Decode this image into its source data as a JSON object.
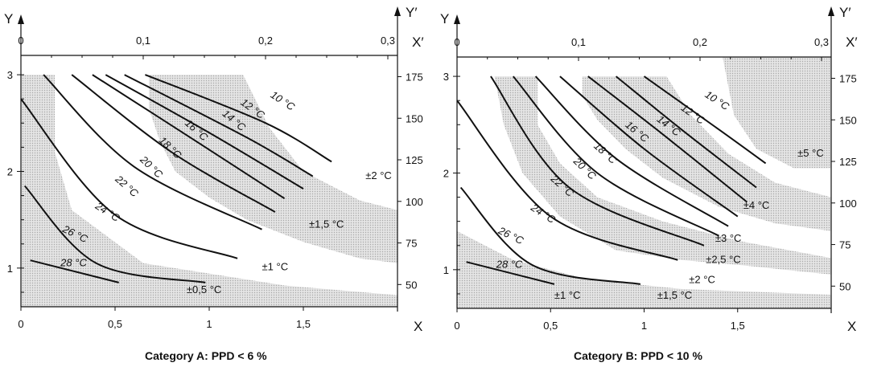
{
  "chart_data": [
    {
      "type": "line",
      "caption": "Category A: PPD < 6 %",
      "xlabel": "X",
      "ylabel": "Y",
      "x2label": "X′",
      "y2label": "Y′",
      "xlim": [
        0,
        2
      ],
      "ylim": [
        0.6,
        3.2
      ],
      "x_ticks": [
        "0",
        "0,5",
        "1",
        "1,5"
      ],
      "y_ticks": [
        "1",
        "2",
        "3"
      ],
      "x2_ticks": [
        "0",
        "0,1",
        "0,2",
        "0,3"
      ],
      "y2_ticks": [
        "50",
        "75",
        "100",
        "125",
        "150",
        "175"
      ],
      "shaded_bands": [
        {
          "points": [
            [
              0,
              3.0
            ],
            [
              0.18,
              3.0
            ],
            [
              0.18,
              2.2
            ],
            [
              0.27,
              1.6
            ],
            [
              0.65,
              1.05
            ],
            [
              1.4,
              0.82
            ],
            [
              2.0,
              0.72
            ],
            [
              2.0,
              0.6
            ],
            [
              0,
              0.6
            ]
          ]
        },
        {
          "points": [
            [
              0.68,
              3.0
            ],
            [
              1.18,
              3.0
            ],
            [
              1.32,
              2.45
            ],
            [
              1.5,
              2.0
            ],
            [
              1.8,
              1.7
            ],
            [
              2.0,
              1.6
            ],
            [
              2.0,
              1.05
            ],
            [
              1.8,
              1.1
            ],
            [
              1.5,
              1.27
            ],
            [
              1.2,
              1.5
            ],
            [
              1.0,
              1.73
            ],
            [
              0.82,
              2.0
            ],
            [
              0.74,
              2.3
            ],
            [
              0.68,
              2.65
            ]
          ]
        }
      ],
      "series": [
        {
          "name": "10 °C",
          "x": [
            0.66,
            1.3,
            1.65
          ],
          "y": [
            3.0,
            2.5,
            2.1
          ]
        },
        {
          "name": "12 °C",
          "x": [
            0.55,
            1.2,
            1.55
          ],
          "y": [
            3.0,
            2.35,
            1.95
          ]
        },
        {
          "name": "14 °C",
          "x": [
            0.45,
            1.0,
            1.5
          ],
          "y": [
            3.0,
            2.4,
            1.82
          ]
        },
        {
          "name": "16 °C",
          "x": [
            0.38,
            0.9,
            1.4
          ],
          "y": [
            3.0,
            2.35,
            1.72
          ]
        },
        {
          "name": "18 °C",
          "x": [
            0.27,
            0.8,
            1.35
          ],
          "y": [
            3.0,
            2.2,
            1.58
          ]
        },
        {
          "name": "22 °C",
          "x": [
            0.12,
            0.6,
            1.28
          ],
          "y": [
            3.0,
            2.05,
            1.4
          ]
        },
        {
          "name": "24 °C",
          "x": [
            0.0,
            0.5,
            1.15
          ],
          "y": [
            2.75,
            1.55,
            1.1
          ]
        },
        {
          "name": "26 °C",
          "x": [
            0.02,
            0.4,
            0.98
          ],
          "y": [
            1.85,
            1.05,
            0.85
          ]
        },
        {
          "name": "28 °C",
          "x": [
            0.05,
            0.52
          ],
          "y": [
            1.08,
            0.85
          ]
        }
      ],
      "curve_labels": [
        {
          "text": "10 °C",
          "x": 1.38,
          "y": 2.7,
          "rot": 33
        },
        {
          "text": "12 °C",
          "x": 1.22,
          "y": 2.62,
          "rot": 36
        },
        {
          "text": "14 °C",
          "x": 1.12,
          "y": 2.5,
          "rot": 40
        },
        {
          "text": "16 °C",
          "x": 0.92,
          "y": 2.4,
          "rot": 42
        },
        {
          "text": "18 °C",
          "x": 0.78,
          "y": 2.22,
          "rot": 44
        },
        {
          "text": "20 °C",
          "x": 0.68,
          "y": 2.02,
          "rot": 44
        },
        {
          "text": "22 °C",
          "x": 0.55,
          "y": 1.82,
          "rot": 42
        },
        {
          "text": "24 °C",
          "x": 0.45,
          "y": 1.55,
          "rot": 33
        },
        {
          "text": "26 °C",
          "x": 0.28,
          "y": 1.32,
          "rot": 26
        },
        {
          "text": "28 °C",
          "x": 0.28,
          "y": 1.02,
          "rot": 0
        }
      ],
      "tolerance_labels": [
        {
          "text": "±2 °C",
          "x": 1.83,
          "y": 1.92
        },
        {
          "text": "±1,5 °C",
          "x": 1.53,
          "y": 1.42
        },
        {
          "text": "±1 °C",
          "x": 1.28,
          "y": 0.98
        },
        {
          "text": "±0,5 °C",
          "x": 0.88,
          "y": 0.74
        }
      ]
    },
    {
      "type": "line",
      "caption": "Category B: PPD < 10 %",
      "xlabel": "X",
      "ylabel": "Y",
      "x2label": "X′",
      "y2label": "Y′",
      "xlim": [
        0,
        2
      ],
      "ylim": [
        0.6,
        3.2
      ],
      "x_ticks": [
        "0",
        "0,5",
        "1",
        "1,5"
      ],
      "y_ticks": [
        "1",
        "2",
        "3"
      ],
      "x2_ticks": [
        "0",
        "0,1",
        "0,2",
        "0,3"
      ],
      "y2_ticks": [
        "50",
        "75",
        "100",
        "125",
        "150",
        "175"
      ],
      "shaded_bands": [
        {
          "points": [
            [
              0,
              1.4
            ],
            [
              0.3,
              1.1
            ],
            [
              0.7,
              0.9
            ],
            [
              1.2,
              0.8
            ],
            [
              2.0,
              0.74
            ],
            [
              2.0,
              0.6
            ],
            [
              0,
              0.6
            ]
          ]
        },
        {
          "points": [
            [
              0.2,
              3.0
            ],
            [
              0.43,
              3.0
            ],
            [
              0.43,
              2.5
            ],
            [
              0.55,
              2.1
            ],
            [
              0.75,
              1.75
            ],
            [
              1.1,
              1.5
            ],
            [
              1.5,
              1.3
            ],
            [
              2.0,
              1.12
            ],
            [
              2.0,
              0.95
            ],
            [
              1.5,
              1.05
            ],
            [
              1.2,
              1.1
            ],
            [
              0.85,
              1.2
            ],
            [
              0.55,
              1.55
            ],
            [
              0.35,
              2.0
            ],
            [
              0.25,
              2.5
            ]
          ]
        },
        {
          "points": [
            [
              0.67,
              3.0
            ],
            [
              1.12,
              3.0
            ],
            [
              1.25,
              2.6
            ],
            [
              1.45,
              2.2
            ],
            [
              1.7,
              1.9
            ],
            [
              2.0,
              1.75
            ],
            [
              2.0,
              1.4
            ],
            [
              1.7,
              1.48
            ],
            [
              1.4,
              1.65
            ],
            [
              1.1,
              1.95
            ],
            [
              0.9,
              2.25
            ],
            [
              0.75,
              2.55
            ],
            [
              0.67,
              2.8
            ]
          ]
        },
        {
          "points": [
            [
              1.42,
              3.2
            ],
            [
              2.0,
              3.2
            ],
            [
              2.0,
              2.05
            ],
            [
              1.8,
              2.05
            ],
            [
              1.6,
              2.25
            ],
            [
              1.48,
              2.6
            ]
          ]
        }
      ],
      "series": [
        {
          "name": "10 °C",
          "x": [
            1.0,
            1.4,
            1.65
          ],
          "y": [
            3.0,
            2.45,
            2.1
          ]
        },
        {
          "name": "12 °C",
          "x": [
            0.85,
            1.2,
            1.6
          ],
          "y": [
            3.0,
            2.45,
            1.85
          ]
        },
        {
          "name": "14 °C",
          "x": [
            0.7,
            1.1,
            1.55
          ],
          "y": [
            3.0,
            2.4,
            1.7
          ]
        },
        {
          "name": "16 °C",
          "x": [
            0.55,
            1.0,
            1.5
          ],
          "y": [
            3.0,
            2.25,
            1.55
          ]
        },
        {
          "name": "18 °C",
          "x": [
            0.42,
            0.85,
            1.45
          ],
          "y": [
            3.0,
            2.15,
            1.45
          ]
        },
        {
          "name": "20 °C",
          "x": [
            0.3,
            0.75,
            1.4
          ],
          "y": [
            3.0,
            2.0,
            1.35
          ]
        },
        {
          "name": "22 °C",
          "x": [
            0.18,
            0.6,
            1.32
          ],
          "y": [
            3.0,
            1.85,
            1.25
          ]
        },
        {
          "name": "24 °C",
          "x": [
            0.0,
            0.5,
            1.18
          ],
          "y": [
            2.75,
            1.55,
            1.1
          ]
        },
        {
          "name": "26 °C",
          "x": [
            0.02,
            0.4,
            0.98
          ],
          "y": [
            1.85,
            1.05,
            0.85
          ]
        },
        {
          "name": "28 °C",
          "x": [
            0.05,
            0.52
          ],
          "y": [
            1.08,
            0.85
          ]
        }
      ],
      "curve_labels": [
        {
          "text": "10 °C",
          "x": 1.38,
          "y": 2.72,
          "rot": 33
        },
        {
          "text": "12 °C",
          "x": 1.25,
          "y": 2.58,
          "rot": 36
        },
        {
          "text": "14 °C",
          "x": 1.12,
          "y": 2.46,
          "rot": 38
        },
        {
          "text": "16 °C",
          "x": 0.95,
          "y": 2.4,
          "rot": 40
        },
        {
          "text": "18 °C",
          "x": 0.78,
          "y": 2.18,
          "rot": 42
        },
        {
          "text": "20 °C",
          "x": 0.67,
          "y": 2.02,
          "rot": 44
        },
        {
          "text": "22 °C",
          "x": 0.55,
          "y": 1.84,
          "rot": 42
        },
        {
          "text": "24 °C",
          "x": 0.45,
          "y": 1.55,
          "rot": 33
        },
        {
          "text": "26 °C",
          "x": 0.28,
          "y": 1.32,
          "rot": 26
        },
        {
          "text": "28 °C",
          "x": 0.28,
          "y": 1.02,
          "rot": 0
        }
      ],
      "tolerance_labels": [
        {
          "text": "±5 °C",
          "x": 1.82,
          "y": 2.17
        },
        {
          "text": "±4 °C",
          "x": 1.53,
          "y": 1.63
        },
        {
          "text": "±3 °C",
          "x": 1.38,
          "y": 1.29
        },
        {
          "text": "±2,5 °C",
          "x": 1.33,
          "y": 1.07
        },
        {
          "text": "±2 °C",
          "x": 1.24,
          "y": 0.86
        },
        {
          "text": "±1,5 °C",
          "x": 1.07,
          "y": 0.7
        },
        {
          "text": "±1 °C",
          "x": 0.52,
          "y": 0.7
        }
      ]
    }
  ],
  "shade_color": "#d2d2d2",
  "line_color": "#111111"
}
